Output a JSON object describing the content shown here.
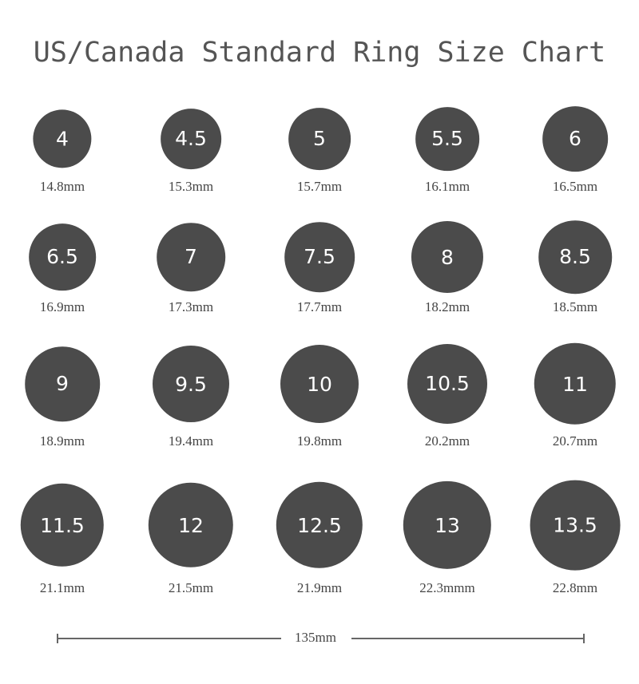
{
  "title": "US/Canada Standard Ring Size Chart",
  "ring_color": "#4b4b4b",
  "rings": [
    {
      "size": "4",
      "mm_label": "14.8mm",
      "mm": 14.8
    },
    {
      "size": "4.5",
      "mm_label": "15.3mm",
      "mm": 15.3
    },
    {
      "size": "5",
      "mm_label": "15.7mm",
      "mm": 15.7
    },
    {
      "size": "5.5",
      "mm_label": "16.1mm",
      "mm": 16.1
    },
    {
      "size": "6",
      "mm_label": "16.5mm",
      "mm": 16.5
    },
    {
      "size": "6.5",
      "mm_label": "16.9mm",
      "mm": 16.9
    },
    {
      "size": "7",
      "mm_label": "17.3mm",
      "mm": 17.3
    },
    {
      "size": "7.5",
      "mm_label": "17.7mm",
      "mm": 17.7
    },
    {
      "size": "8",
      "mm_label": "18.2mm",
      "mm": 18.2
    },
    {
      "size": "8.5",
      "mm_label": "18.5mm",
      "mm": 18.5
    },
    {
      "size": "9",
      "mm_label": "18.9mm",
      "mm": 18.9
    },
    {
      "size": "9.5",
      "mm_label": "19.4mm",
      "mm": 19.4
    },
    {
      "size": "10",
      "mm_label": "19.8mm",
      "mm": 19.8
    },
    {
      "size": "10.5",
      "mm_label": "20.2mm",
      "mm": 20.2
    },
    {
      "size": "11",
      "mm_label": "20.7mm",
      "mm": 20.7
    },
    {
      "size": "11.5",
      "mm_label": "21.1mm",
      "mm": 21.1
    },
    {
      "size": "12",
      "mm_label": "21.5mm",
      "mm": 21.5
    },
    {
      "size": "12.5",
      "mm_label": "21.9mm",
      "mm": 21.9
    },
    {
      "size": "13",
      "mm_label": "22.3mmm",
      "mm": 22.3
    },
    {
      "size": "13.5",
      "mm_label": "22.8mm",
      "mm": 22.8
    }
  ],
  "scale_bar": {
    "label": "135mm",
    "length_mm": 135
  }
}
